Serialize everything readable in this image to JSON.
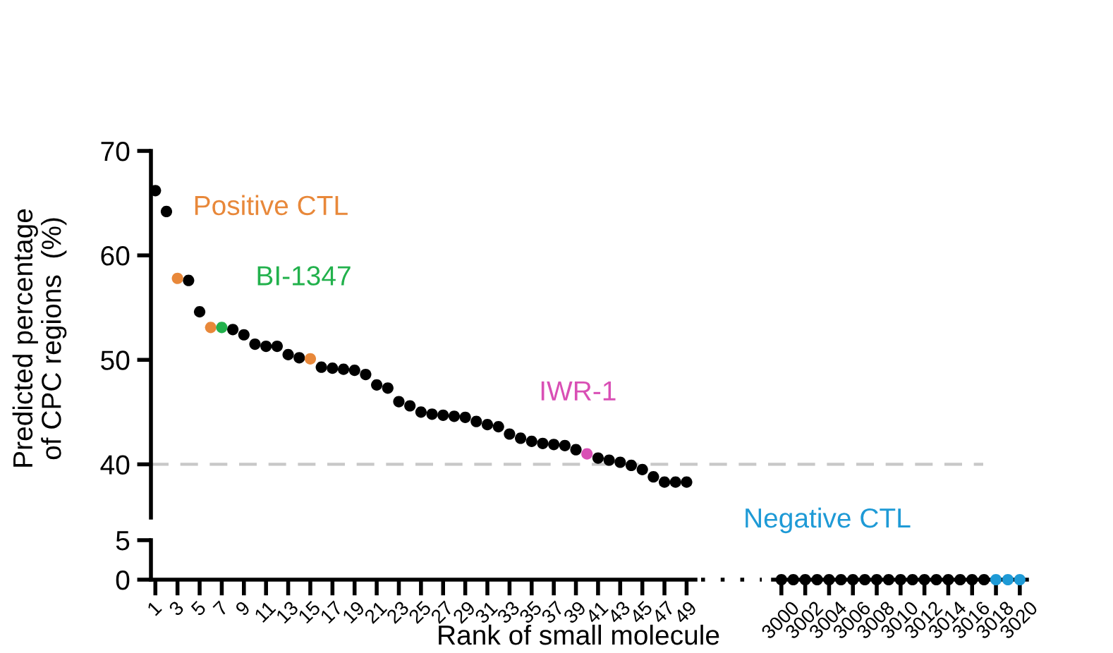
{
  "chart_data": [
    {
      "type": "scatter",
      "ylabel": "Predicted percentage\nof CPC regions  (%)",
      "xlim": [
        0.6,
        75.8
      ],
      "ylim": [
        34.9,
        70
      ],
      "yticks": [
        40,
        50,
        60,
        70
      ],
      "xticks": [
        1,
        3,
        5,
        7,
        9,
        11,
        13,
        15,
        17,
        19,
        21,
        23,
        25,
        27,
        29,
        31,
        33,
        35,
        37,
        39,
        41,
        43,
        45,
        47,
        49
      ],
      "tick_labels": "y",
      "grid": false,
      "marker": "circle",
      "ref_lines": [
        {
          "axis": "y",
          "value": 40,
          "color": "#c8c8c8",
          "line_style": "dashed"
        }
      ],
      "series": [
        {
          "color": "#000000",
          "x": [
            1,
            2,
            4,
            5,
            8,
            9,
            10,
            11,
            12,
            13,
            14,
            16,
            17,
            18,
            19,
            20,
            21,
            22,
            23,
            24,
            25,
            26,
            27,
            28,
            29,
            30,
            31,
            32,
            33,
            34,
            35,
            36,
            37,
            38,
            39,
            41,
            42,
            43,
            44,
            45,
            46,
            47,
            48,
            49
          ],
          "values": [
            66.2,
            64.2,
            57.6,
            54.6,
            52.9,
            52.4,
            51.5,
            51.3,
            51.3,
            50.5,
            50.2,
            49.3,
            49.2,
            49.1,
            49.0,
            48.6,
            47.6,
            47.3,
            46.0,
            45.6,
            45.0,
            44.8,
            44.7,
            44.6,
            44.5,
            44.1,
            43.8,
            43.6,
            42.9,
            42.5,
            42.2,
            42.0,
            41.9,
            41.8,
            41.4,
            40.6,
            40.4,
            40.2,
            39.9,
            39.5,
            38.8,
            38.3,
            38.3,
            38.3
          ]
        },
        {
          "name": "Positive CTL",
          "color": "#e8883a",
          "x": [
            3,
            6,
            15
          ],
          "values": [
            57.8,
            53.1,
            50.1
          ]
        },
        {
          "name": "BI-1347",
          "color": "#22b14c",
          "x": [
            7
          ],
          "values": [
            53.1
          ]
        },
        {
          "name": "IWR-1",
          "color": "#d94fb5",
          "x": [
            40
          ],
          "values": [
            41.0
          ]
        }
      ]
    },
    {
      "type": "scatter",
      "xlabel": "Rank of small molecule",
      "xlim": [
        0.6,
        49.8
      ],
      "ylim": [
        0,
        5
      ],
      "yticks": [
        0,
        5
      ],
      "xticks": [
        1,
        3,
        5,
        7,
        9,
        11,
        13,
        15,
        17,
        19,
        21,
        23,
        25,
        27,
        29,
        31,
        33,
        35,
        37,
        39,
        41,
        43,
        45,
        47,
        49
      ],
      "grid": false
    },
    {
      "type": "scatter",
      "xlim": [
        2999.3,
        3020.6
      ],
      "ylim": [
        0,
        5
      ],
      "xticks": [
        3000,
        3002,
        3004,
        3006,
        3008,
        3010,
        3012,
        3014,
        3016,
        3018,
        3020
      ],
      "tick_labels": "x",
      "grid": false,
      "marker": "circle",
      "series": [
        {
          "color": "#000000",
          "x": [
            3000,
            3001,
            3002,
            3003,
            3004,
            3005,
            3006,
            3007,
            3008,
            3009,
            3010,
            3011,
            3012,
            3013,
            3014,
            3015,
            3016,
            3017
          ],
          "values": [
            0,
            0,
            0,
            0,
            0,
            0,
            0,
            0,
            0,
            0,
            0,
            0,
            0,
            0,
            0,
            0,
            0,
            0
          ]
        },
        {
          "name": "Negative CTL",
          "color": "#1e9ad6",
          "x": [
            3018,
            3019,
            3020
          ],
          "values": [
            0,
            0,
            0
          ]
        }
      ]
    }
  ]
}
